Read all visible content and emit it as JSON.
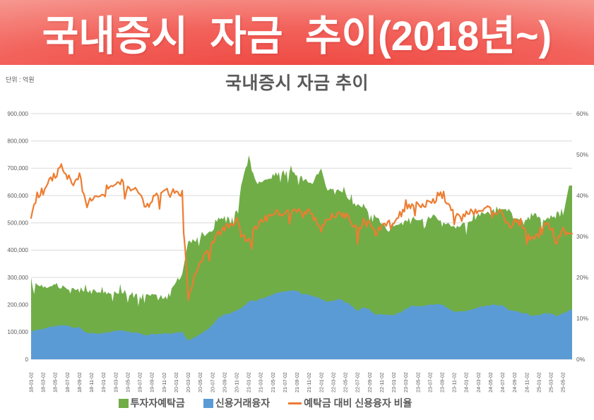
{
  "banner": {
    "title": "국내증시 자금 추이(2018년~)",
    "text_color": "#ffffff",
    "bg_center": "#ee443d",
    "bg_edge": "#fcdbd8"
  },
  "chart": {
    "title": "국내증시 자금 추이",
    "unit_label": "단위 : 억원",
    "text_color": "#595959",
    "grid_color": "#d9d9d9",
    "left_axis": {
      "labels": [
        "900,000",
        "800,000",
        "700,000",
        "600,000",
        "500,000",
        "400,000",
        "300,000",
        "200,000",
        "100,000",
        "0"
      ]
    },
    "right_axis": {
      "labels": [
        "60%",
        "50%",
        "40%",
        "30%",
        "20%",
        "10%",
        "0%"
      ]
    },
    "x_ticks": [
      "18-01-02",
      "18-03-02",
      "18-05-02",
      "18-07-02",
      "18-09-02",
      "18-11-02",
      "19-01-02",
      "19-03-02",
      "19-05-02",
      "19-07-02",
      "19-09-02",
      "19-11-02",
      "20-01-02",
      "20-03-02",
      "20-05-02",
      "20-07-02",
      "20-09-02",
      "20-11-02",
      "21-01-02",
      "21-03-02",
      "21-05-02",
      "21-07-02",
      "21-09-02",
      "21-11-02",
      "22-01-02",
      "22-03-02",
      "22-05-02",
      "22-07-02",
      "22-09-02",
      "22-11-02",
      "23-01-02",
      "23-03-02",
      "23-05-02",
      "23-07-02",
      "23-09-02",
      "23-11-02",
      "24-01-02",
      "24-03-02",
      "24-05-02",
      "24-07-02",
      "24-09-02",
      "24-11-02",
      "25-01-02",
      "25-03-02",
      "25-05-02"
    ],
    "legend": [
      {
        "key": "deposits",
        "label": "투자자예탁금",
        "color": "#70AD47",
        "marker": "square"
      },
      {
        "key": "credit",
        "label": "신용거래융자",
        "color": "#5B9BD5",
        "marker": "square"
      },
      {
        "key": "ratio",
        "label": "예탁금 대비 신용융자 비율",
        "color": "#ED7D31",
        "marker": "line"
      }
    ]
  },
  "chart_data": {
    "type": "area",
    "title": "국내증시 자금 추이",
    "unit": "억원",
    "left_ylim": [
      0,
      900000
    ],
    "right_ylim": [
      0,
      60
    ],
    "grid": true,
    "legend_position": "bottom",
    "x_monthly": [
      "18-01",
      "18-02",
      "18-03",
      "18-04",
      "18-05",
      "18-06",
      "18-07",
      "18-08",
      "18-09",
      "18-10",
      "18-11",
      "18-12",
      "19-01",
      "19-02",
      "19-03",
      "19-04",
      "19-05",
      "19-06",
      "19-07",
      "19-08",
      "19-09",
      "19-10",
      "19-11",
      "19-12",
      "20-01",
      "20-02",
      "20-03",
      "20-04",
      "20-05",
      "20-06",
      "20-07",
      "20-08",
      "20-09",
      "20-10",
      "20-11",
      "20-12",
      "21-01",
      "21-02",
      "21-03",
      "21-04",
      "21-05",
      "21-06",
      "21-07",
      "21-08",
      "21-09",
      "21-10",
      "21-11",
      "21-12",
      "22-01",
      "22-02",
      "22-03",
      "22-04",
      "22-05",
      "22-06",
      "22-07",
      "22-08",
      "22-09",
      "22-10",
      "22-11",
      "22-12",
      "23-01",
      "23-02",
      "23-03",
      "23-04",
      "23-05",
      "23-06",
      "23-07",
      "23-08",
      "23-09",
      "23-10",
      "23-11",
      "23-12",
      "24-01",
      "24-02",
      "24-03",
      "24-04",
      "24-05",
      "24-06",
      "24-07",
      "24-08",
      "24-09",
      "24-10",
      "24-11",
      "24-12",
      "25-01",
      "25-02",
      "25-03",
      "25-04",
      "25-05",
      "25-06"
    ],
    "series": [
      {
        "key": "deposits",
        "name": "투자자예탁금",
        "type": "area",
        "axis": "left",
        "color": "#70AD47",
        "values": [
          300000,
          272000,
          268000,
          270000,
          274000,
          266000,
          260000,
          256000,
          262000,
          252000,
          247000,
          250000,
          246000,
          243000,
          249000,
          247000,
          243000,
          239000,
          233000,
          237000,
          234000,
          231000,
          229000,
          248000,
          288000,
          305000,
          430000,
          438000,
          442000,
          462000,
          475000,
          512000,
          522000,
          518000,
          552000,
          655000,
          740000,
          655000,
          642000,
          662000,
          672000,
          682000,
          680000,
          692000,
          678000,
          658000,
          648000,
          672000,
          700000,
          625000,
          632000,
          622000,
          602000,
          582000,
          562000,
          562000,
          542000,
          522000,
          498000,
          470000,
          482000,
          492000,
          502000,
          522000,
          512000,
          516000,
          522000,
          526000,
          506000,
          492000,
          482000,
          492000,
          502000,
          512000,
          526000,
          532000,
          536000,
          552000,
          546000,
          546000,
          522000,
          506000,
          512000,
          532000,
          522000,
          516000,
          522000,
          542000,
          532000,
          645000
        ]
      },
      {
        "key": "credit",
        "name": "신용거래융자",
        "type": "area",
        "axis": "left",
        "color": "#5B9BD5",
        "values": [
          104000,
          108000,
          112000,
          118000,
          122000,
          125000,
          122000,
          116000,
          118000,
          99000,
          95000,
          94000,
          97000,
          101000,
          104000,
          107000,
          102000,
          98000,
          95000,
          88000,
          91000,
          92000,
          94000,
          93000,
          98000,
          100000,
          68000,
          80000,
          92000,
          106000,
          126000,
          152000,
          165000,
          168000,
          180000,
          192000,
          212000,
          216000,
          221000,
          228000,
          238000,
          245000,
          248000,
          252000,
          250000,
          241000,
          236000,
          230000,
          221000,
          211000,
          215000,
          220000,
          212000,
          196000,
          179000,
          190000,
          181000,
          163000,
          166000,
          163000,
          162000,
          172000,
          183000,
          198000,
          193000,
          195000,
          200000,
          203000,
          200000,
          186000,
          173000,
          175000,
          178000,
          182000,
          190000,
          195000,
          198000,
          200000,
          198000,
          181000,
          176000,
          172000,
          166000,
          158000,
          162000,
          170000,
          168000,
          158000,
          168000,
          180000
        ]
      },
      {
        "key": "ratio",
        "name": "예탁금 대비 신용융자 비율",
        "type": "line",
        "axis": "right",
        "color": "#ED7D31",
        "values": [
          34.5,
          40.0,
          41.5,
          43.5,
          45.0,
          47.0,
          44.5,
          43.0,
          45.0,
          38.5,
          39.5,
          39.0,
          40.0,
          42.0,
          42.5,
          43.5,
          42.0,
          41.0,
          41.5,
          37.0,
          39.0,
          40.0,
          41.0,
          40.5,
          41.5,
          40.5,
          15.0,
          19.5,
          23.5,
          26.5,
          28.5,
          30.5,
          32.0,
          32.5,
          33.5,
          30.0,
          28.5,
          32.0,
          34.0,
          34.5,
          35.0,
          36.0,
          35.5,
          36.0,
          36.5,
          35.5,
          36.0,
          34.0,
          32.0,
          34.5,
          35.0,
          35.5,
          35.0,
          33.5,
          31.5,
          33.5,
          33.0,
          30.5,
          33.0,
          33.5,
          33.5,
          35.5,
          36.5,
          38.0,
          37.5,
          37.5,
          38.5,
          38.5,
          40.5,
          38.0,
          35.5,
          35.5,
          35.5,
          36.0,
          36.0,
          36.5,
          37.0,
          36.0,
          36.0,
          32.5,
          33.5,
          34.0,
          31.5,
          29.5,
          31.0,
          33.0,
          32.0,
          29.0,
          31.5,
          30.0
        ]
      }
    ],
    "style": {
      "noise": {
        "deposits": {
          "amp": 9000,
          "spike_prob": 0.12,
          "spike_amp": 40000
        },
        "credit": {
          "amp": 2200,
          "spike_prob": 0.05,
          "spike_amp": 8000
        },
        "ratio": {
          "amp": 0.9,
          "spike_prob": 0.1,
          "spike_amp": 3.2
        }
      }
    }
  }
}
